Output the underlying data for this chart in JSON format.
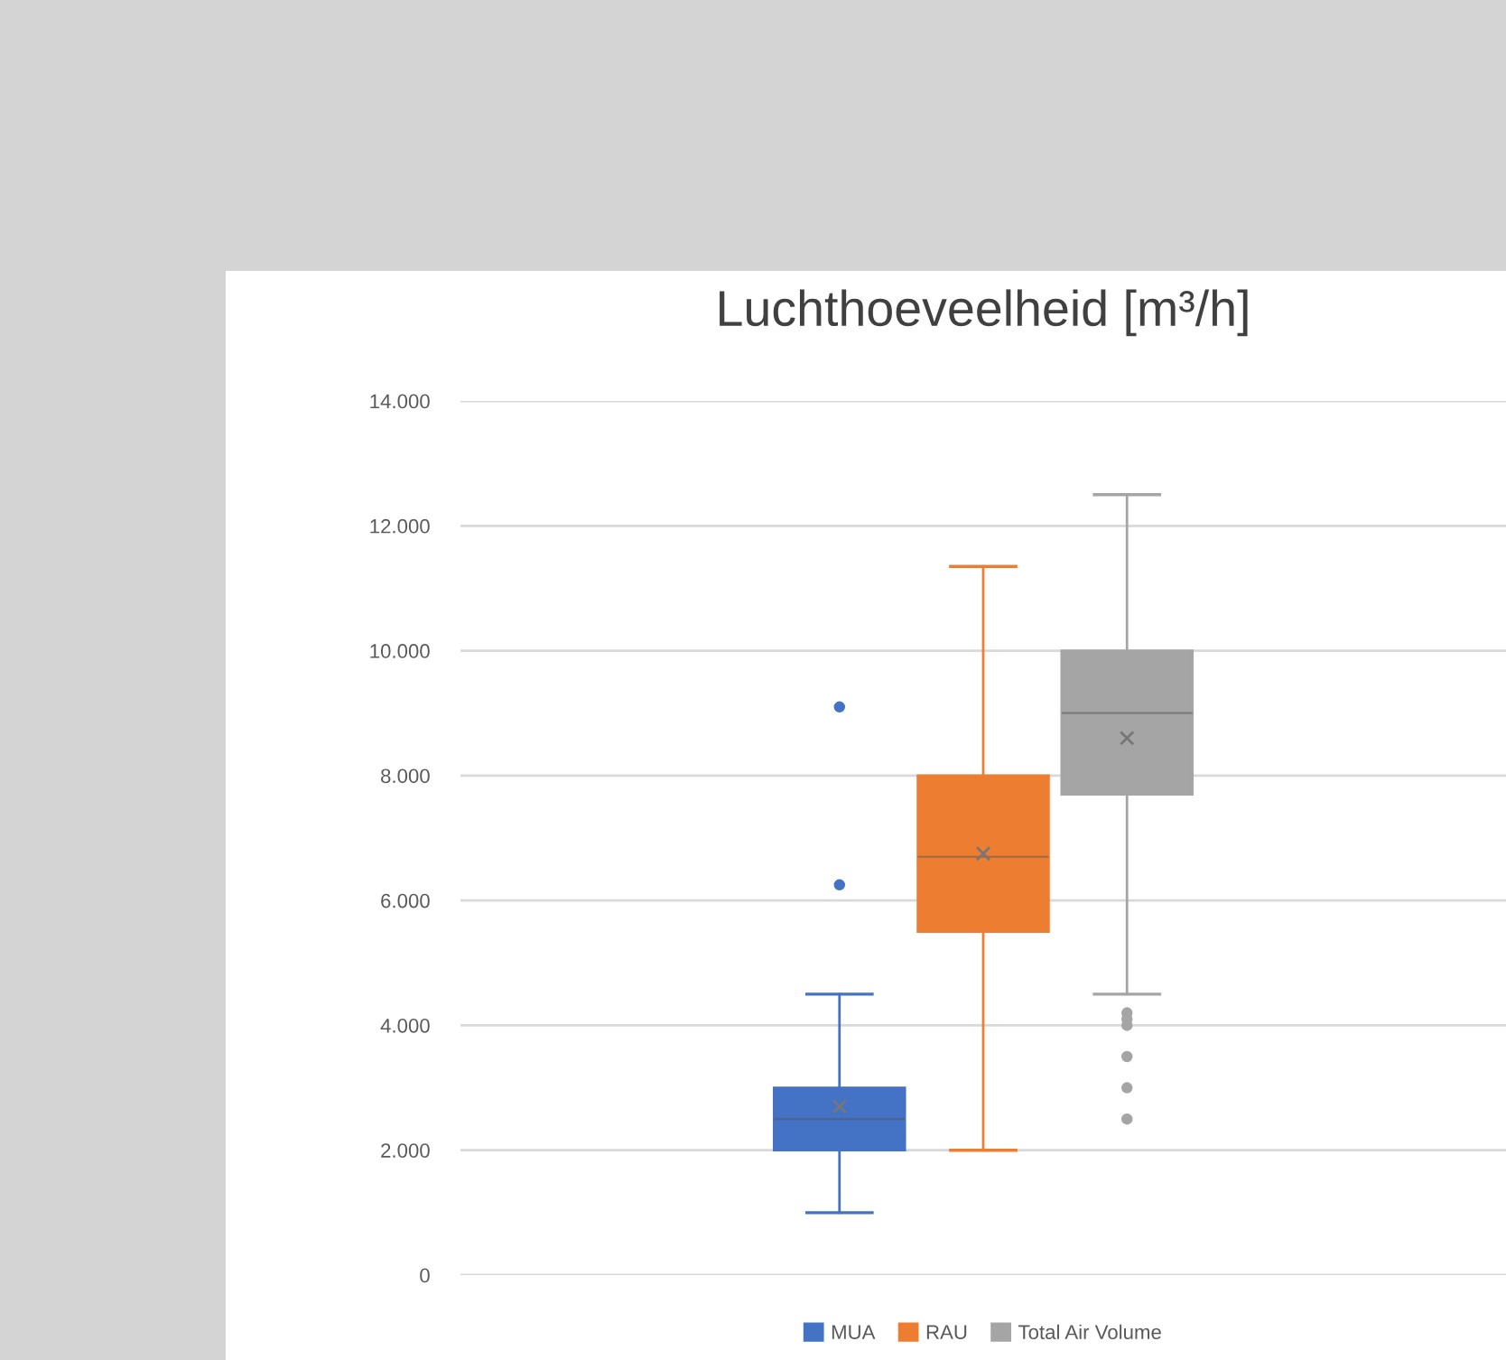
{
  "chart_data": {
    "type": "box",
    "title": "Luchthoeveelheid [m³/h]",
    "categories": [
      null
    ],
    "series": [
      {
        "name": "MUA",
        "color": "#4472c4",
        "boxes": [
          {
            "low": 1000,
            "q1": 2000,
            "median": 2500,
            "q3": 3000,
            "high": 4500,
            "mean": 2700,
            "outliers": [
              6250,
              9100
            ]
          }
        ]
      },
      {
        "name": "RAU",
        "color": "#ed7d31",
        "boxes": [
          {
            "low": 2000,
            "q1": 5500,
            "median": 6700,
            "q3": 8000,
            "high": 11350,
            "mean": 6750
          }
        ]
      },
      {
        "name": "Total Air Volume",
        "color": "#a5a5a5",
        "boxes": [
          {
            "low": 4500,
            "q1": 7700,
            "median": 9000,
            "q3": 10000,
            "high": 12500,
            "mean": 8600,
            "outliers": [
              2500,
              3000,
              3500,
              4000,
              4100,
              4200
            ]
          }
        ]
      }
    ],
    "ylim": [
      0,
      14000
    ],
    "yticks": [
      0,
      {
        "value": 2000,
        "label": "2.000"
      },
      {
        "value": 4000,
        "label": "4.000"
      },
      {
        "value": 6000,
        "label": "6.000"
      },
      {
        "value": 8000,
        "label": "8.000"
      },
      {
        "value": 10000,
        "label": "10.000"
      },
      {
        "value": 12000,
        "label": "12.000"
      },
      {
        "value": 14000,
        "label": "14.000"
      }
    ],
    "grid": "y",
    "legend": "bottom"
  }
}
